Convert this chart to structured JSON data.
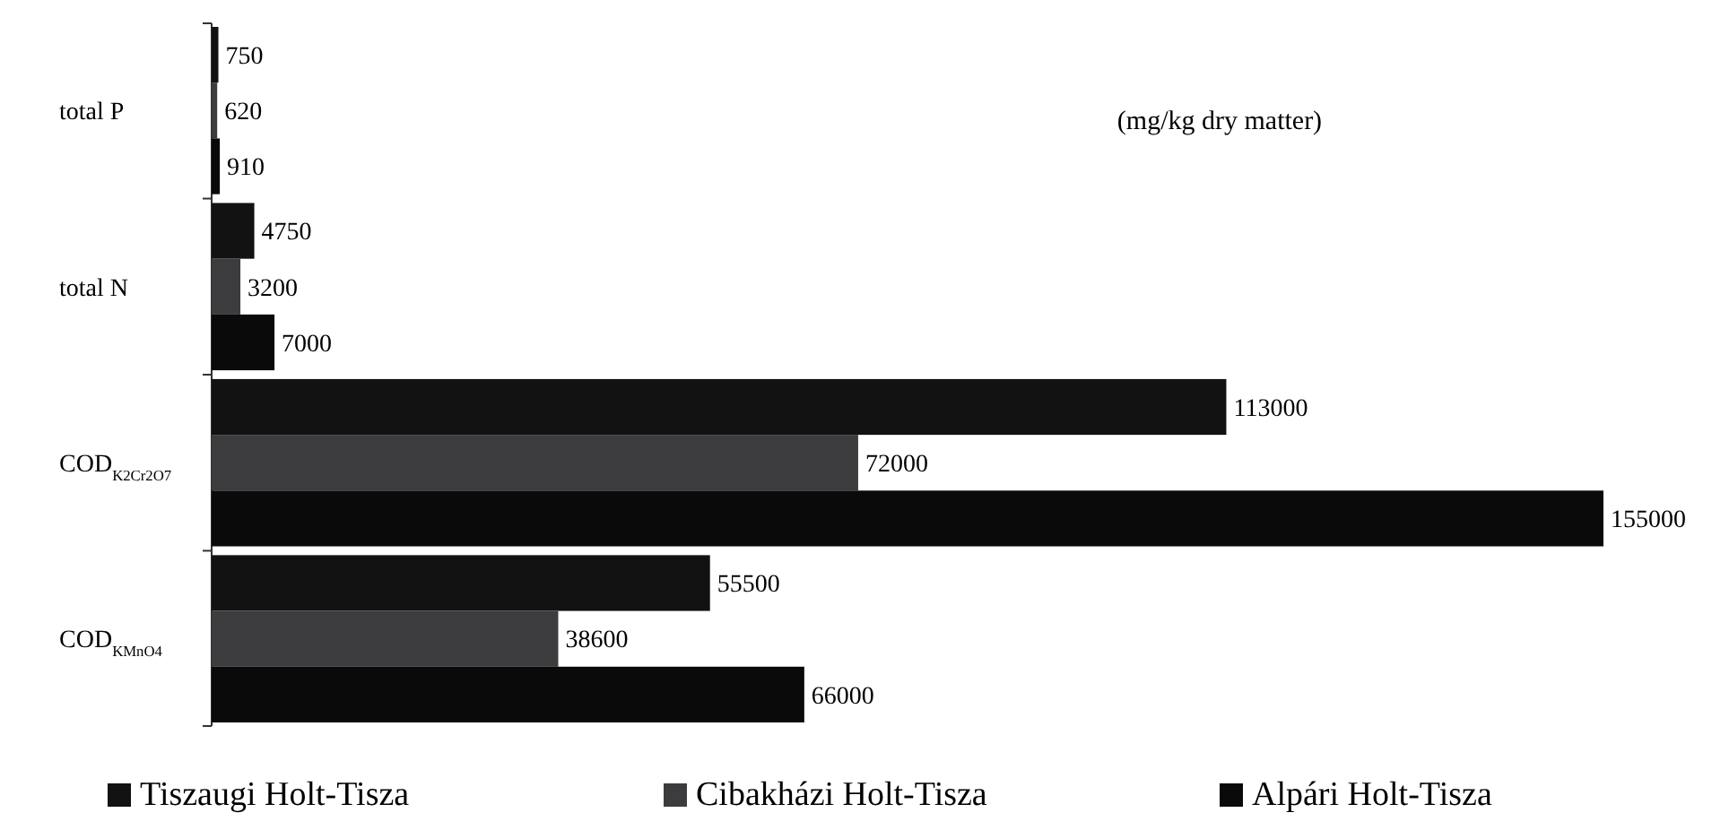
{
  "chart_data": {
    "type": "bar",
    "orientation": "horizontal",
    "categories": [
      "total P",
      "total N",
      "COD$_{K2Cr2O7}$",
      "COD$_{KMnO4}$"
    ],
    "series": [
      {
        "name": "Tiszaugi Holt-Tisza",
        "color": "#121212",
        "values": [
          750,
          4750,
          113000,
          55500
        ]
      },
      {
        "name": "Cibakházi Holt-Tisza",
        "color": "#3c3c3e",
        "values": [
          620,
          3200,
          72000,
          38600
        ]
      },
      {
        "name": "Alpári Holt-Tisza",
        "color": "#0a0a0a",
        "values": [
          910,
          7000,
          155000,
          66000
        ]
      }
    ],
    "data_labels": true,
    "legend": "bottom",
    "annotations": [
      "(mg/kg dry matter)"
    ]
  }
}
